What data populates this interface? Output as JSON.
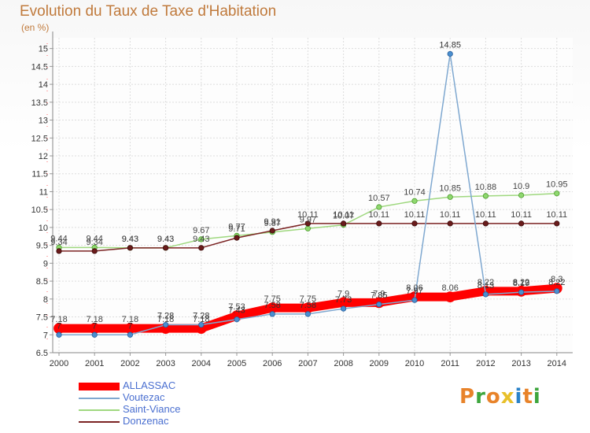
{
  "header": {
    "title": "Evolution du Taux de Taxe d'Habitation",
    "unit": "(en %)"
  },
  "brand": {
    "text": "Proxiti",
    "colors": [
      "#e8832a",
      "#3da63d",
      "#e8832a",
      "#e8c02a",
      "#2a82c8",
      "#e8832a",
      "#3da63d"
    ]
  },
  "chart_data": {
    "type": "line",
    "title": "Evolution du Taux de Taxe d'Habitation",
    "subtitle": "(en %)",
    "xlabel": "",
    "ylabel": "",
    "x": [
      "2000",
      "2001",
      "2002",
      "2003",
      "2004",
      "2005",
      "2006",
      "2007",
      "2008",
      "2009",
      "2010",
      "2011",
      "2012",
      "2013",
      "2014"
    ],
    "ylim": [
      6.5,
      15.3
    ],
    "yticks": [
      "6.5",
      "7",
      "7.5",
      "8",
      "8.5",
      "9",
      "9.5",
      "10",
      "10.5",
      "11",
      "11.5",
      "12",
      "12.5",
      "13",
      "13.5",
      "14",
      "14.5",
      "15"
    ],
    "grid": true,
    "legend_position": "bottom-left",
    "series": [
      {
        "name": "ALLASSAC",
        "color": "#ff0000",
        "values": [
          7.18,
          7.18,
          7.18,
          7.18,
          7.18,
          7.53,
          7.75,
          7.75,
          7.9,
          7.9,
          8.06,
          8.06,
          8.22,
          8.22,
          8.3
        ],
        "labels": [
          "7.18",
          "7.18",
          "7.18",
          "7.18",
          "7.18",
          "7.53",
          "7.75",
          "7.75",
          "7.9",
          "7.9",
          "8.06",
          "8.06",
          "8.22",
          "8.22",
          "8.3"
        ]
      },
      {
        "name": "Voutezac",
        "color": "#7fa8d0",
        "values": [
          7.0,
          7.0,
          7.0,
          7.28,
          7.28,
          7.43,
          7.58,
          7.58,
          7.73,
          7.85,
          7.97,
          14.85,
          8.13,
          8.19,
          8.22
        ],
        "labels": [
          "7",
          "7",
          "7",
          "7.28",
          "7.28",
          "7.43",
          "7.58",
          "7.58",
          "7.73",
          "7.85",
          "7.97",
          "14.85",
          "8.13",
          "8.19",
          "8.22"
        ]
      },
      {
        "name": "Saint-Viance",
        "color": "#9fd87f",
        "values": [
          9.44,
          9.44,
          9.43,
          9.43,
          9.67,
          9.77,
          9.87,
          9.97,
          10.07,
          10.57,
          10.74,
          10.85,
          10.88,
          10.9,
          10.95
        ],
        "labels": [
          "9.44",
          "9.44",
          "9.43",
          "9.43",
          "9.67",
          "9.77",
          "9.87",
          "9.97",
          "10.07",
          "10.57",
          "10.74",
          "10.85",
          "10.88",
          "10.9",
          "10.95"
        ]
      },
      {
        "name": "Donzenac",
        "color": "#7b2323",
        "values": [
          9.34,
          9.34,
          9.43,
          9.43,
          9.43,
          9.71,
          9.91,
          10.11,
          10.11,
          10.11,
          10.11,
          10.11,
          10.11,
          10.11,
          10.11
        ],
        "labels": [
          "9.34",
          "9.34",
          "9.43",
          "9.43",
          "9.43",
          "9.71",
          "9.91",
          "10.11",
          "10.11",
          "10.11",
          "10.11",
          "10.11",
          "10.11",
          "10.11",
          "10.11"
        ]
      }
    ]
  }
}
